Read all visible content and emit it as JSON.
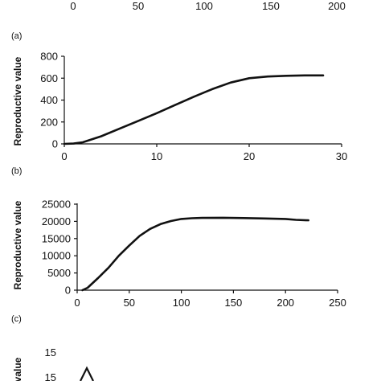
{
  "chart_data": [
    {
      "panel": "top",
      "type": "line",
      "xticks": [
        "0",
        "50",
        "100",
        "150",
        "200"
      ],
      "partial": true
    },
    {
      "panel": "(a)",
      "type": "line",
      "ylabel": "Reproductive value",
      "xlim": [
        0,
        30
      ],
      "ylim": [
        0,
        800
      ],
      "xticks": [
        0,
        10,
        20,
        30
      ],
      "yticks": [
        0,
        200,
        400,
        600,
        800
      ],
      "series": [
        {
          "x": [
            0,
            1,
            2,
            4,
            6,
            8,
            10,
            12,
            14,
            16,
            18,
            20,
            22,
            24,
            26,
            28
          ],
          "y": [
            0,
            3,
            15,
            70,
            140,
            210,
            280,
            355,
            430,
            500,
            560,
            600,
            615,
            622,
            625,
            625
          ]
        }
      ]
    },
    {
      "panel": "(b)",
      "type": "line",
      "ylabel": "Reproductive value",
      "xlim": [
        0,
        250
      ],
      "ylim": [
        0,
        25000
      ],
      "xticks": [
        0,
        50,
        100,
        150,
        200,
        250
      ],
      "yticks": [
        0,
        5000,
        10000,
        15000,
        20000,
        25000
      ],
      "series": [
        {
          "x": [
            5,
            10,
            20,
            30,
            40,
            50,
            60,
            70,
            80,
            90,
            100,
            110,
            120,
            140,
            160,
            180,
            200,
            210,
            222
          ],
          "y": [
            0,
            700,
            3500,
            6500,
            10000,
            13000,
            15800,
            17800,
            19200,
            20100,
            20700,
            20900,
            21000,
            21050,
            20950,
            20850,
            20700,
            20450,
            20300
          ]
        }
      ]
    },
    {
      "panel": "(c)",
      "type": "line",
      "ylabel": "value",
      "yticks": [
        15
      ],
      "partial": true
    }
  ]
}
